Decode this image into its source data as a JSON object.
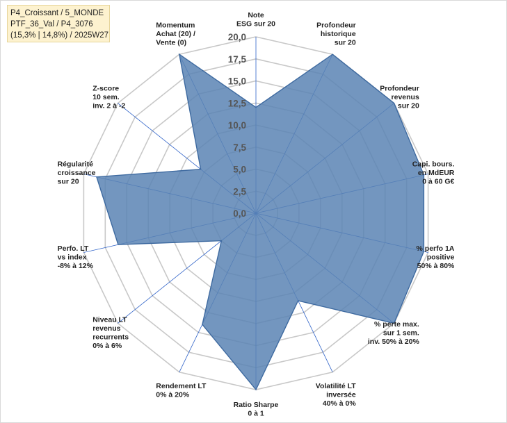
{
  "header_box": {
    "line1": "P4_Croissant / 5_MONDE",
    "line2": "PTF_36_Val / P4_3076",
    "line3": "(15,3% | 14,8%) / 2025W27"
  },
  "chart_data": {
    "type": "radar",
    "rmin": 0,
    "rmax": 20,
    "tick_step": 2.5,
    "tick_labels": [
      "0,0",
      "2,5",
      "5,0",
      "7,5",
      "10,0",
      "12,5",
      "15,0",
      "17,5",
      "20,0"
    ],
    "axes": [
      [
        "Note",
        "ESG sur 20"
      ],
      [
        "Profondeur",
        "historique",
        "sur 20"
      ],
      [
        "Profondeur",
        "revenus",
        "sur 20"
      ],
      [
        "Capi. bours.",
        "en MdEUR",
        "0 à 60 G€"
      ],
      [
        "% perfo 1A",
        "positive",
        "50% à 80%"
      ],
      [
        "% perte max.",
        "sur 1 sem.",
        "inv. 50% à 20%"
      ],
      [
        "Volatilité LT",
        "inversée",
        "40% à 0%"
      ],
      [
        "Ratio Sharpe",
        "0 à 1"
      ],
      [
        "Rendement LT",
        "0% à 20%"
      ],
      [
        "Niveau LT",
        "revenus",
        "recurrents",
        "0% à 6%"
      ],
      [
        "Perfo. LT",
        "vs index",
        "-8% à 12%"
      ],
      [
        "Régularité",
        "croissance",
        "sur 20"
      ],
      [
        "Z-score",
        "10 sem.",
        "inv. 2 à -2"
      ],
      [
        "Momentum",
        "Achat (20) /",
        "Vente (0)"
      ]
    ],
    "values": [
      12,
      20,
      20,
      19.5,
      19.5,
      20,
      11,
      20,
      14,
      5,
      16,
      18.5,
      8,
      20
    ],
    "grid": true,
    "fill_color": "#5b84b4",
    "line_color": "#3e6aa0",
    "grid_color": "#c8c8c8",
    "spoke_color": "#2e62c8"
  }
}
